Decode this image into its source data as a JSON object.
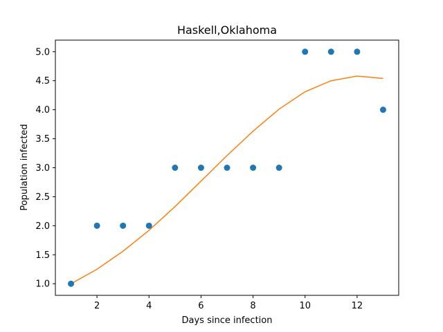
{
  "chart_data": {
    "type": "scatter",
    "title": "Haskell,Oklahoma",
    "xlabel": "Days since infection",
    "ylabel": "Population infected",
    "xlim": [
      0.4,
      13.6
    ],
    "ylim": [
      0.8,
      5.2
    ],
    "xticks": [
      2,
      4,
      6,
      8,
      10,
      12
    ],
    "yticks": [
      1.0,
      1.5,
      2.0,
      2.5,
      3.0,
      3.5,
      4.0,
      4.5,
      5.0
    ],
    "xtick_labels": [
      "2",
      "4",
      "6",
      "8",
      "10",
      "12"
    ],
    "ytick_labels": [
      "1.0",
      "1.5",
      "2.0",
      "2.5",
      "3.0",
      "3.5",
      "4.0",
      "4.5",
      "5.0"
    ],
    "grid": false,
    "series": [
      {
        "type": "scatter",
        "color": "#1f77b4",
        "x": [
          1,
          2,
          3,
          4,
          5,
          6,
          7,
          8,
          9,
          10,
          11,
          12,
          13
        ],
        "y": [
          1,
          2,
          2,
          2,
          3,
          3,
          3,
          3,
          3,
          5,
          5,
          5,
          4
        ]
      },
      {
        "type": "line",
        "color": "#ff7f0e",
        "x": [
          1,
          2,
          3,
          4,
          5,
          6,
          7,
          8,
          9,
          10,
          11,
          12,
          13
        ],
        "y": [
          1.0,
          1.25,
          1.56,
          1.92,
          2.33,
          2.77,
          3.21,
          3.63,
          4.01,
          4.31,
          4.5,
          4.58,
          4.54
        ]
      }
    ]
  }
}
